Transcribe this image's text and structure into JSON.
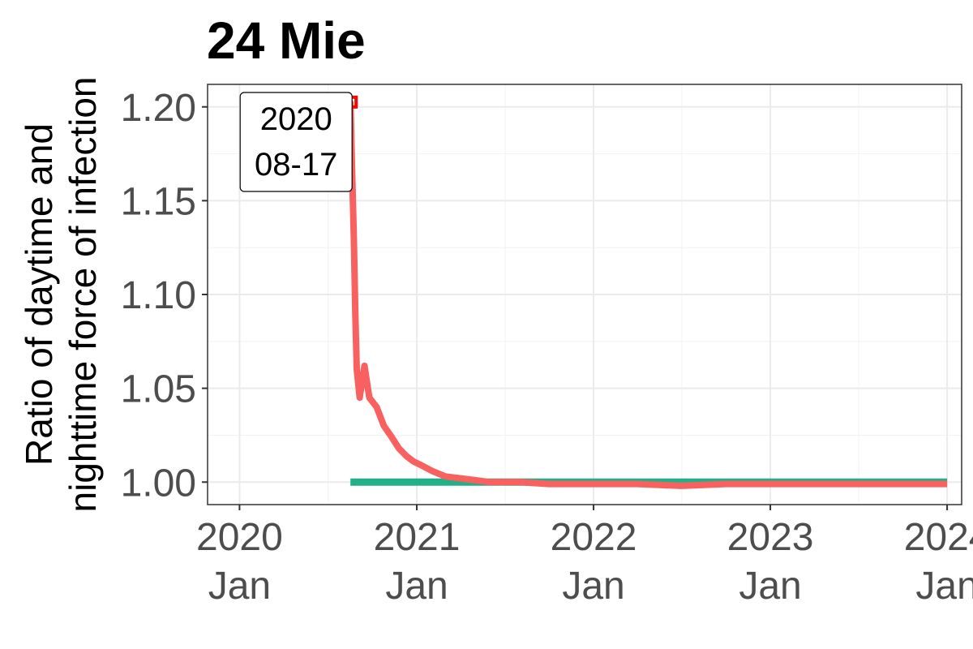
{
  "chart_data": {
    "type": "line",
    "title": "24 Mie",
    "ylabel_lines": [
      "Ratio of daytime and",
      "nighttime force of infection"
    ],
    "xlabel": "",
    "x_axis": {
      "type": "date",
      "range": [
        "2019-10-27",
        "2024-01-31"
      ],
      "ticks": [
        {
          "date": "2020-01-01",
          "year": "2020",
          "month": "Jan"
        },
        {
          "date": "2021-01-01",
          "year": "2021",
          "month": "Jan"
        },
        {
          "date": "2022-01-01",
          "year": "2022",
          "month": "Jan"
        },
        {
          "date": "2023-01-01",
          "year": "2023",
          "month": "Jan"
        },
        {
          "date": "2024-01-01",
          "year": "2024",
          "month": "Jan"
        }
      ]
    },
    "y_axis": {
      "ylim": [
        0.988,
        1.212
      ],
      "ticks": [
        {
          "value": 1.0,
          "label": "1.00"
        },
        {
          "value": 1.05,
          "label": "1.05"
        },
        {
          "value": 1.1,
          "label": "1.10"
        },
        {
          "value": 1.15,
          "label": "1.15"
        },
        {
          "value": 1.2,
          "label": "1.20"
        }
      ]
    },
    "grid": true,
    "legend": "none",
    "series": [
      {
        "color": "#21b087",
        "points": [
          {
            "date": "2020-08-17",
            "value": 1.0
          },
          {
            "date": "2024-01-01",
            "value": 1.0
          }
        ]
      },
      {
        "color": "#f8615f",
        "points": [
          {
            "date": "2020-08-17",
            "value": 1.203
          },
          {
            "date": "2020-08-20",
            "value": 1.17
          },
          {
            "date": "2020-08-24",
            "value": 1.13
          },
          {
            "date": "2020-08-27",
            "value": 1.09
          },
          {
            "date": "2020-08-30",
            "value": 1.06
          },
          {
            "date": "2020-09-05",
            "value": 1.045
          },
          {
            "date": "2020-09-15",
            "value": 1.062
          },
          {
            "date": "2020-09-25",
            "value": 1.045
          },
          {
            "date": "2020-10-10",
            "value": 1.04
          },
          {
            "date": "2020-10-25",
            "value": 1.03
          },
          {
            "date": "2020-11-10",
            "value": 1.024
          },
          {
            "date": "2020-11-25",
            "value": 1.018
          },
          {
            "date": "2020-12-10",
            "value": 1.014
          },
          {
            "date": "2020-12-25",
            "value": 1.011
          },
          {
            "date": "2021-01-10",
            "value": 1.009
          },
          {
            "date": "2021-02-01",
            "value": 1.006
          },
          {
            "date": "2021-03-01",
            "value": 1.003
          },
          {
            "date": "2021-04-01",
            "value": 1.002
          },
          {
            "date": "2021-05-01",
            "value": 1.001
          },
          {
            "date": "2021-06-01",
            "value": 1.0
          },
          {
            "date": "2021-08-01",
            "value": 1.0
          },
          {
            "date": "2021-10-01",
            "value": 0.999
          },
          {
            "date": "2022-01-01",
            "value": 0.999
          },
          {
            "date": "2022-04-01",
            "value": 0.999
          },
          {
            "date": "2022-07-01",
            "value": 0.998
          },
          {
            "date": "2022-10-01",
            "value": 0.999
          },
          {
            "date": "2023-01-01",
            "value": 0.999
          },
          {
            "date": "2023-04-01",
            "value": 0.999
          },
          {
            "date": "2023-07-01",
            "value": 0.999
          },
          {
            "date": "2023-10-01",
            "value": 0.999
          },
          {
            "date": "2024-01-01",
            "value": 0.999
          }
        ]
      }
    ],
    "annotation": {
      "line1": "2020",
      "line2": "08-17",
      "date": "2020-08-17",
      "value": 1.203
    },
    "marker": {
      "date": "2020-08-17",
      "value": 1.203,
      "color": "#ff0000"
    }
  }
}
